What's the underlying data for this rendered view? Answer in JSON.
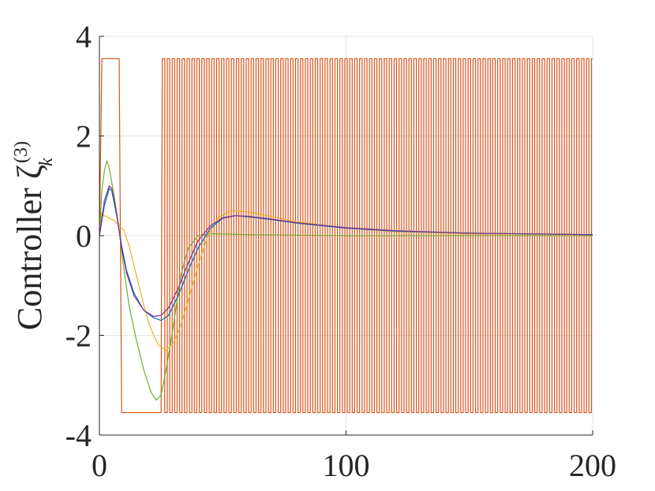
{
  "chart_data": {
    "type": "line",
    "title": "",
    "xlabel": "",
    "ylabel": "Controller ζ",
    "ylabel_superscript": "(3)",
    "ylabel_subscript": "k",
    "xlim": [
      0,
      200
    ],
    "ylim": [
      -4,
      4
    ],
    "xticks": [
      0,
      100,
      200
    ],
    "xtick_labels": [
      "0",
      "100",
      "200"
    ],
    "yticks": [
      -4,
      -2,
      0,
      2,
      4
    ],
    "ytick_labels": [
      "-4",
      "-2",
      "0",
      "2",
      "4"
    ],
    "grid": true,
    "legend": "none",
    "colors": [
      "#0072bd",
      "#d95319",
      "#edb120",
      "#7e2f8e",
      "#77ac30"
    ],
    "series": [
      {
        "color": "#d95319",
        "style": "switching",
        "points": [
          [
            0,
            0
          ],
          [
            1,
            3.55
          ],
          [
            8,
            3.55
          ],
          [
            9,
            -3.55
          ],
          [
            25,
            -3.55
          ],
          [
            25.5,
            3.55
          ]
        ],
        "switching": {
          "start": 25.5,
          "end": 200,
          "period": 2.0,
          "high": 3.55,
          "low": -3.55
        }
      },
      {
        "color": "#77ac30",
        "points": [
          [
            0,
            0
          ],
          [
            1,
            0.9
          ],
          [
            2,
            1.3
          ],
          [
            3,
            1.5
          ],
          [
            4,
            1.35
          ],
          [
            6,
            0.8
          ],
          [
            8,
            0.1
          ],
          [
            10,
            -0.7
          ],
          [
            12,
            -1.4
          ],
          [
            15,
            -2.1
          ],
          [
            18,
            -2.7
          ],
          [
            21,
            -3.15
          ],
          [
            23,
            -3.3
          ],
          [
            25,
            -3.2
          ],
          [
            27,
            -2.7
          ],
          [
            30,
            -1.8
          ],
          [
            33,
            -0.8
          ],
          [
            36,
            -0.25
          ],
          [
            40,
            0.0
          ],
          [
            45,
            0.04
          ],
          [
            60,
            0.02
          ],
          [
            100,
            0.0
          ],
          [
            200,
            0.0
          ]
        ]
      },
      {
        "color": "#edb120",
        "points": [
          [
            0,
            0
          ],
          [
            1,
            0.45
          ],
          [
            2,
            0.4
          ],
          [
            4,
            0.35
          ],
          [
            6,
            0.3
          ],
          [
            8,
            0.2
          ],
          [
            10,
            0.1
          ],
          [
            12,
            -0.2
          ],
          [
            14,
            -0.6
          ],
          [
            16,
            -1.0
          ],
          [
            18,
            -1.4
          ],
          [
            20,
            -1.75
          ],
          [
            22,
            -2.0
          ],
          [
            24,
            -2.2
          ],
          [
            27,
            -2.3
          ],
          [
            30,
            -2.15
          ],
          [
            33,
            -1.8
          ],
          [
            36,
            -1.3
          ],
          [
            40,
            -0.6
          ],
          [
            44,
            0.0
          ],
          [
            48,
            0.35
          ],
          [
            53,
            0.5
          ],
          [
            60,
            0.48
          ],
          [
            70,
            0.38
          ],
          [
            80,
            0.28
          ],
          [
            100,
            0.15
          ],
          [
            120,
            0.08
          ],
          [
            150,
            0.04
          ],
          [
            200,
            0.02
          ]
        ]
      },
      {
        "color": "#0072bd",
        "points": [
          [
            0,
            0
          ],
          [
            2,
            0.6
          ],
          [
            4,
            0.95
          ],
          [
            5,
            0.9
          ],
          [
            7,
            0.4
          ],
          [
            9,
            -0.2
          ],
          [
            11,
            -0.7
          ],
          [
            14,
            -1.15
          ],
          [
            18,
            -1.5
          ],
          [
            22,
            -1.65
          ],
          [
            25,
            -1.7
          ],
          [
            28,
            -1.6
          ],
          [
            32,
            -1.2
          ],
          [
            36,
            -0.7
          ],
          [
            40,
            -0.25
          ],
          [
            45,
            0.15
          ],
          [
            50,
            0.35
          ],
          [
            55,
            0.4
          ],
          [
            60,
            0.38
          ],
          [
            70,
            0.32
          ],
          [
            80,
            0.25
          ],
          [
            100,
            0.15
          ],
          [
            120,
            0.09
          ],
          [
            150,
            0.05
          ],
          [
            200,
            0.02
          ]
        ]
      },
      {
        "color": "#7e2f8e",
        "points": [
          [
            0,
            0
          ],
          [
            2,
            0.7
          ],
          [
            4,
            1.0
          ],
          [
            5,
            0.95
          ],
          [
            7,
            0.45
          ],
          [
            9,
            -0.25
          ],
          [
            11,
            -0.75
          ],
          [
            14,
            -1.2
          ],
          [
            18,
            -1.5
          ],
          [
            22,
            -1.62
          ],
          [
            25,
            -1.6
          ],
          [
            28,
            -1.45
          ],
          [
            32,
            -1.05
          ],
          [
            36,
            -0.55
          ],
          [
            40,
            -0.1
          ],
          [
            45,
            0.2
          ],
          [
            50,
            0.36
          ],
          [
            55,
            0.4
          ],
          [
            60,
            0.39
          ],
          [
            70,
            0.33
          ],
          [
            80,
            0.26
          ],
          [
            100,
            0.16
          ],
          [
            120,
            0.1
          ],
          [
            150,
            0.05
          ],
          [
            200,
            0.02
          ]
        ]
      }
    ]
  }
}
